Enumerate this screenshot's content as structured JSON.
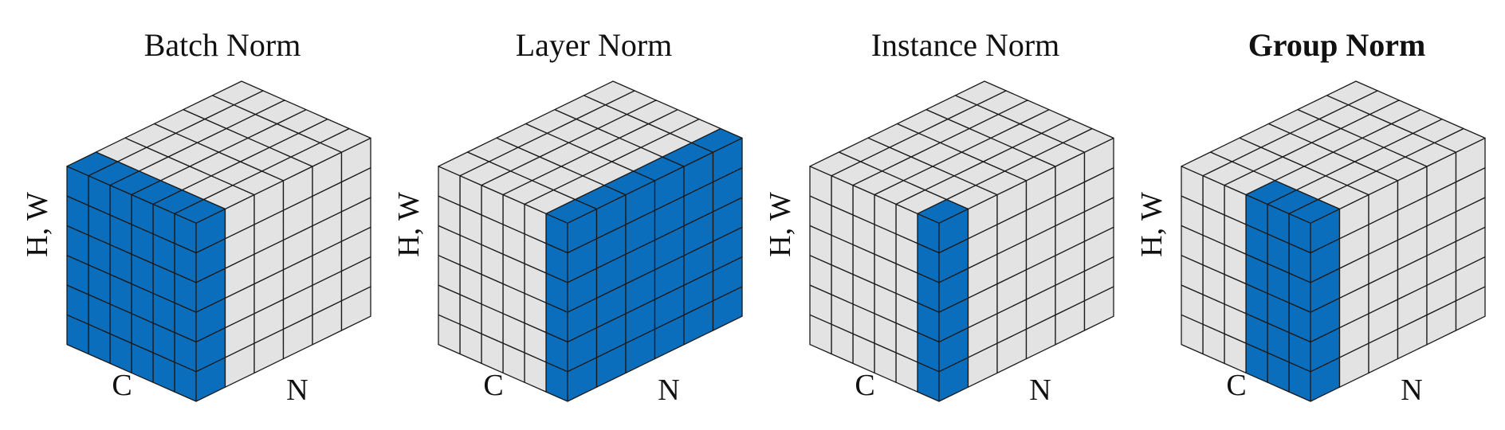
{
  "colors": {
    "highlight": "#0a6ebd",
    "cell": "#e3e3e3",
    "stroke": "#1a1a1a",
    "text": "#111111"
  },
  "grid": {
    "size": 6
  },
  "panels": [
    {
      "title": "Batch Norm",
      "bold": false,
      "y_label": "H, W",
      "c_label": "C",
      "n_label": "N",
      "highlight": "batch"
    },
    {
      "title": "Layer Norm",
      "bold": false,
      "y_label": "H, W",
      "c_label": "C",
      "n_label": "N",
      "highlight": "layer"
    },
    {
      "title": "Instance Norm",
      "bold": false,
      "y_label": "H, W",
      "c_label": "C",
      "n_label": "N",
      "highlight": "instance"
    },
    {
      "title": "Group Norm",
      "bold": true,
      "y_label": "H, W",
      "c_label": "C",
      "n_label": "N",
      "highlight": "group"
    }
  ]
}
